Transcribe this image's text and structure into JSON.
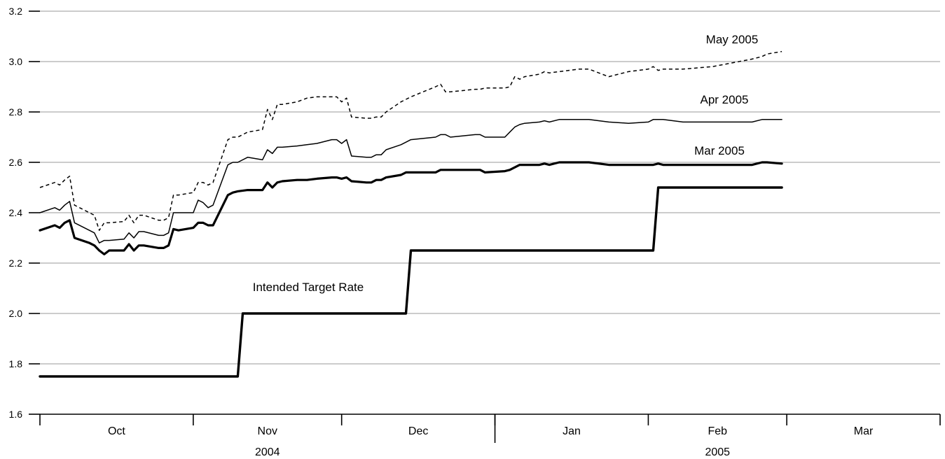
{
  "chart_data": {
    "type": "line",
    "title": "",
    "xlabel": "",
    "ylabel": "",
    "ylim": [
      1.6,
      3.2
    ],
    "yticks": [
      1.6,
      1.8,
      2.0,
      2.2,
      2.4,
      2.6,
      2.8,
      3.0,
      3.2
    ],
    "ytick_labels": [
      "1.6",
      "1.8",
      "2.0",
      "2.2",
      "2.4",
      "2.6",
      "2.8",
      "3.0",
      "3.2"
    ],
    "xlim": [
      "2004-10-01",
      "2005-03-31"
    ],
    "month_labels": [
      "Oct",
      "Nov",
      "Dec",
      "Jan",
      "Feb",
      "Mar"
    ],
    "month_starts": [
      "2004-10-01",
      "2004-11-01",
      "2004-12-01",
      "2005-01-01",
      "2005-02-01",
      "2005-03-01",
      "2005-04-01"
    ],
    "year_labels": [
      {
        "label": "2004",
        "from": "2004-10-01",
        "to": "2005-01-01"
      },
      {
        "label": "2005",
        "from": "2005-01-01",
        "to": "2005-04-01"
      }
    ],
    "grid": true,
    "legend": "none",
    "series": [
      {
        "name": "Intended Target Rate",
        "style": "solid",
        "weight": "heavy",
        "x": [
          "2004-10-01",
          "2004-11-10",
          "2004-11-11",
          "2004-12-14",
          "2004-12-15",
          "2005-02-02",
          "2005-02-03",
          "2005-02-28"
        ],
        "values": [
          1.75,
          1.75,
          2.0,
          2.0,
          2.25,
          2.25,
          2.5,
          2.5
        ]
      },
      {
        "name": "Mar 2005",
        "style": "solid",
        "weight": "bold",
        "x": [
          "2004-10-01",
          "2004-10-04",
          "2004-10-05",
          "2004-10-06",
          "2004-10-07",
          "2004-10-08",
          "2004-10-11",
          "2004-10-12",
          "2004-10-13",
          "2004-10-14",
          "2004-10-15",
          "2004-10-18",
          "2004-10-19",
          "2004-10-20",
          "2004-10-21",
          "2004-10-22",
          "2004-10-25",
          "2004-10-26",
          "2004-10-27",
          "2004-10-28",
          "2004-10-29",
          "2004-11-01",
          "2004-11-02",
          "2004-11-03",
          "2004-11-04",
          "2004-11-05",
          "2004-11-08",
          "2004-11-09",
          "2004-11-10",
          "2004-11-12",
          "2004-11-15",
          "2004-11-16",
          "2004-11-17",
          "2004-11-18",
          "2004-11-19",
          "2004-11-22",
          "2004-11-24",
          "2004-11-26",
          "2004-11-29",
          "2004-11-30",
          "2004-12-01",
          "2004-12-02",
          "2004-12-03",
          "2004-12-06",
          "2004-12-07",
          "2004-12-08",
          "2004-12-09",
          "2004-12-10",
          "2004-12-13",
          "2004-12-14",
          "2004-12-15",
          "2004-12-20",
          "2004-12-21",
          "2004-12-22",
          "2004-12-23",
          "2004-12-28",
          "2004-12-29",
          "2004-12-30",
          "2005-01-03",
          "2005-01-04",
          "2005-01-05",
          "2005-01-06",
          "2005-01-07",
          "2005-01-10",
          "2005-01-11",
          "2005-01-12",
          "2005-01-14",
          "2005-01-18",
          "2005-01-20",
          "2005-01-24",
          "2005-01-28",
          "2005-02-01",
          "2005-02-02",
          "2005-02-03",
          "2005-02-04",
          "2005-02-08",
          "2005-02-14",
          "2005-02-22",
          "2005-02-24",
          "2005-02-25",
          "2005-02-28"
        ],
        "values": [
          2.33,
          2.35,
          2.34,
          2.36,
          2.37,
          2.3,
          2.28,
          2.27,
          2.25,
          2.235,
          2.25,
          2.25,
          2.275,
          2.25,
          2.27,
          2.27,
          2.26,
          2.26,
          2.27,
          2.335,
          2.33,
          2.34,
          2.36,
          2.36,
          2.35,
          2.35,
          2.47,
          2.48,
          2.485,
          2.49,
          2.49,
          2.52,
          2.5,
          2.52,
          2.525,
          2.53,
          2.53,
          2.535,
          2.54,
          2.54,
          2.535,
          2.54,
          2.525,
          2.52,
          2.52,
          2.53,
          2.53,
          2.54,
          2.55,
          2.56,
          2.56,
          2.56,
          2.57,
          2.57,
          2.57,
          2.57,
          2.57,
          2.56,
          2.565,
          2.57,
          2.58,
          2.59,
          2.59,
          2.59,
          2.595,
          2.59,
          2.6,
          2.6,
          2.6,
          2.59,
          2.59,
          2.59,
          2.59,
          2.595,
          2.59,
          2.59,
          2.59,
          2.59,
          2.6,
          2.6,
          2.595
        ]
      },
      {
        "name": "Apr 2005",
        "style": "solid",
        "weight": "thin",
        "x": [
          "2004-10-01",
          "2004-10-04",
          "2004-10-05",
          "2004-10-06",
          "2004-10-07",
          "2004-10-08",
          "2004-10-11",
          "2004-10-12",
          "2004-10-13",
          "2004-10-14",
          "2004-10-15",
          "2004-10-18",
          "2004-10-19",
          "2004-10-20",
          "2004-10-21",
          "2004-10-22",
          "2004-10-25",
          "2004-10-26",
          "2004-10-27",
          "2004-10-28",
          "2004-10-29",
          "2004-11-01",
          "2004-11-02",
          "2004-11-03",
          "2004-11-04",
          "2004-11-05",
          "2004-11-08",
          "2004-11-09",
          "2004-11-10",
          "2004-11-12",
          "2004-11-15",
          "2004-11-16",
          "2004-11-17",
          "2004-11-18",
          "2004-11-19",
          "2004-11-22",
          "2004-11-24",
          "2004-11-26",
          "2004-11-29",
          "2004-11-30",
          "2004-12-01",
          "2004-12-02",
          "2004-12-03",
          "2004-12-06",
          "2004-12-07",
          "2004-12-08",
          "2004-12-09",
          "2004-12-10",
          "2004-12-13",
          "2004-12-14",
          "2004-12-15",
          "2004-12-20",
          "2004-12-21",
          "2004-12-22",
          "2004-12-23",
          "2004-12-28",
          "2004-12-29",
          "2004-12-30",
          "2005-01-03",
          "2005-01-04",
          "2005-01-05",
          "2005-01-06",
          "2005-01-07",
          "2005-01-10",
          "2005-01-11",
          "2005-01-12",
          "2005-01-14",
          "2005-01-18",
          "2005-01-20",
          "2005-01-24",
          "2005-01-28",
          "2005-02-01",
          "2005-02-02",
          "2005-02-03",
          "2005-02-04",
          "2005-02-08",
          "2005-02-14",
          "2005-02-22",
          "2005-02-24",
          "2005-02-25",
          "2005-02-28"
        ],
        "values": [
          2.4,
          2.42,
          2.41,
          2.43,
          2.445,
          2.36,
          2.33,
          2.32,
          2.28,
          2.29,
          2.29,
          2.295,
          2.32,
          2.3,
          2.325,
          2.325,
          2.31,
          2.31,
          2.32,
          2.4,
          2.4,
          2.4,
          2.45,
          2.44,
          2.42,
          2.43,
          2.59,
          2.6,
          2.6,
          2.62,
          2.61,
          2.65,
          2.635,
          2.66,
          2.66,
          2.665,
          2.67,
          2.675,
          2.69,
          2.69,
          2.675,
          2.69,
          2.625,
          2.62,
          2.62,
          2.63,
          2.63,
          2.65,
          2.67,
          2.68,
          2.69,
          2.7,
          2.71,
          2.71,
          2.7,
          2.71,
          2.71,
          2.7,
          2.7,
          2.72,
          2.74,
          2.75,
          2.755,
          2.76,
          2.765,
          2.76,
          2.77,
          2.77,
          2.77,
          2.76,
          2.755,
          2.76,
          2.77,
          2.77,
          2.77,
          2.76,
          2.76,
          2.76,
          2.77,
          2.77,
          2.77
        ]
      },
      {
        "name": "May 2005",
        "style": "dashed",
        "weight": "thin",
        "x": [
          "2004-10-01",
          "2004-10-04",
          "2004-10-05",
          "2004-10-06",
          "2004-10-07",
          "2004-10-08",
          "2004-10-11",
          "2004-10-12",
          "2004-10-13",
          "2004-10-14",
          "2004-10-15",
          "2004-10-18",
          "2004-10-19",
          "2004-10-20",
          "2004-10-21",
          "2004-10-22",
          "2004-10-25",
          "2004-10-26",
          "2004-10-27",
          "2004-10-28",
          "2004-10-29",
          "2004-11-01",
          "2004-11-02",
          "2004-11-03",
          "2004-11-04",
          "2004-11-05",
          "2004-11-08",
          "2004-11-09",
          "2004-11-10",
          "2004-11-12",
          "2004-11-15",
          "2004-11-16",
          "2004-11-17",
          "2004-11-18",
          "2004-11-19",
          "2004-11-22",
          "2004-11-24",
          "2004-11-26",
          "2004-11-29",
          "2004-11-30",
          "2004-12-01",
          "2004-12-02",
          "2004-12-03",
          "2004-12-06",
          "2004-12-07",
          "2004-12-08",
          "2004-12-09",
          "2004-12-10",
          "2004-12-13",
          "2004-12-14",
          "2004-12-15",
          "2004-12-20",
          "2004-12-21",
          "2004-12-22",
          "2004-12-23",
          "2004-12-28",
          "2004-12-29",
          "2004-12-30",
          "2005-01-03",
          "2005-01-04",
          "2005-01-05",
          "2005-01-06",
          "2005-01-07",
          "2005-01-10",
          "2005-01-11",
          "2005-01-12",
          "2005-01-14",
          "2005-01-18",
          "2005-01-20",
          "2005-01-24",
          "2005-01-28",
          "2005-02-01",
          "2005-02-02",
          "2005-02-03",
          "2005-02-04",
          "2005-02-08",
          "2005-02-14",
          "2005-02-22",
          "2005-02-24",
          "2005-02-25",
          "2005-02-28"
        ],
        "values": [
          2.5,
          2.52,
          2.51,
          2.53,
          2.545,
          2.43,
          2.4,
          2.39,
          2.33,
          2.36,
          2.36,
          2.365,
          2.39,
          2.36,
          2.39,
          2.39,
          2.37,
          2.37,
          2.38,
          2.47,
          2.47,
          2.48,
          2.52,
          2.52,
          2.51,
          2.52,
          2.69,
          2.7,
          2.7,
          2.72,
          2.73,
          2.81,
          2.77,
          2.83,
          2.83,
          2.84,
          2.855,
          2.86,
          2.86,
          2.86,
          2.84,
          2.855,
          2.78,
          2.775,
          2.775,
          2.78,
          2.78,
          2.8,
          2.84,
          2.85,
          2.86,
          2.9,
          2.91,
          2.88,
          2.88,
          2.89,
          2.89,
          2.895,
          2.895,
          2.9,
          2.94,
          2.93,
          2.94,
          2.95,
          2.96,
          2.955,
          2.96,
          2.97,
          2.97,
          2.94,
          2.96,
          2.97,
          2.98,
          2.965,
          2.97,
          2.97,
          2.98,
          3.01,
          3.02,
          3.03,
          3.04
        ]
      }
    ],
    "annotations": [
      {
        "text": "May 2005",
        "series": "May 2005"
      },
      {
        "text": "Apr 2005",
        "series": "Apr 2005"
      },
      {
        "text": "Mar 2005",
        "series": "Mar 2005"
      },
      {
        "text": "Intended Target Rate",
        "series": "Intended Target Rate"
      }
    ]
  }
}
